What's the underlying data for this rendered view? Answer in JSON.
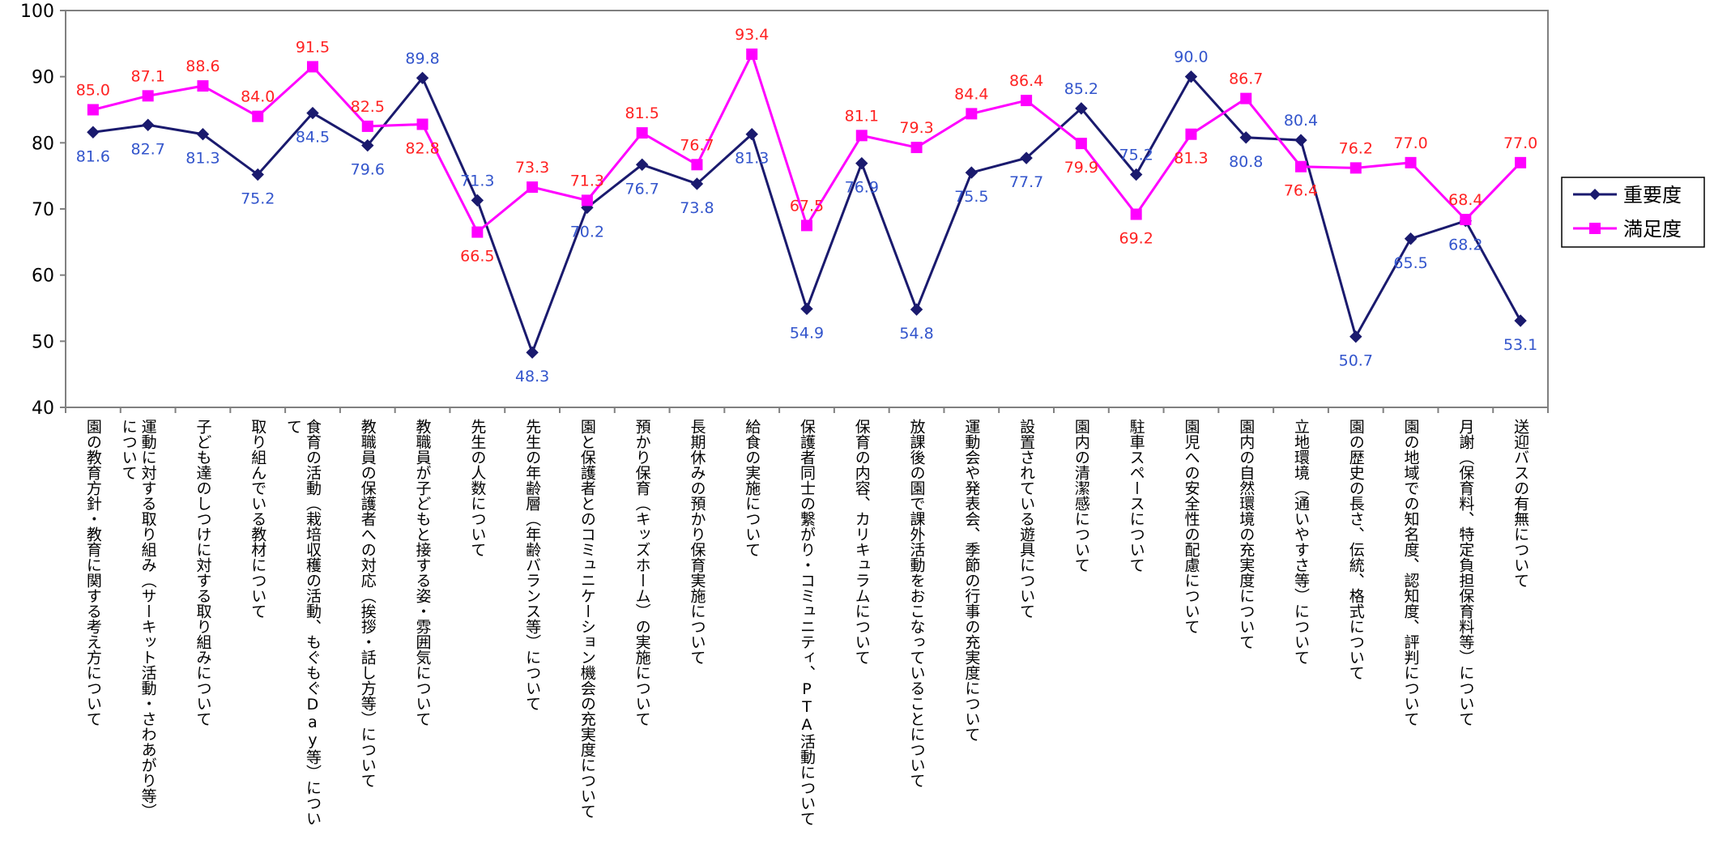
{
  "chart_data": {
    "type": "line",
    "categories": [
      "園の教育方針・教育に関する考え方について",
      "運動に対する取り組み（サーキット活動・さわあがり等）について",
      "子ども達のしつけに対する取り組みについて",
      "取り組んでいる教材について",
      "食育の活動（栽培収穫の活動、もぐもぐDay等）について",
      "教職員の保護者への対応（挨拶・話し方等）について",
      "教職員が子どもと接する姿・雰囲気について",
      "先生の人数について",
      "先生の年齢層（年齢バランス等）について",
      "園と保護者とのコミュニケーション機会の充実度について",
      "預かり保育（キッズホーム）の実施について",
      "長期休みの預かり保育実施について",
      "給食の実施について",
      "保護者同士の繋がり・コミュニティ、PTA活動について",
      "保育の内容、カリキュラムについて",
      "放課後の園で課外活動をおこなっていることについて",
      "運動会や発表会、季節の行事の充実度について",
      "設置されている遊具について",
      "園内の清潔感について",
      "駐車スペースについて",
      "園児への安全性の配慮について",
      "園内の自然環境の充実度について",
      "立地環境（通いやすさ等）について",
      "園の歴史の長さ、伝統、格式について",
      "園の地域での知名度、認知度、評判について",
      "月謝（保育料、特定負担保育料等）について",
      "送迎バスの有無について"
    ],
    "series": [
      {
        "name": "重要度",
        "color": "#1a1a6e",
        "marker": "diamond",
        "values": [
          81.6,
          82.7,
          81.3,
          75.2,
          84.5,
          79.6,
          89.8,
          71.3,
          48.3,
          70.2,
          76.7,
          73.8,
          81.3,
          54.9,
          76.9,
          54.8,
          75.5,
          77.7,
          85.2,
          75.2,
          90.0,
          80.8,
          80.4,
          50.7,
          65.5,
          68.2,
          53.1
        ],
        "labels": [
          "81.6",
          "82.7",
          "81.3",
          "75.2",
          "84.5",
          "79.6",
          "89.8",
          "71.3",
          "48.3",
          "70.2",
          "76.7",
          "73.8",
          "81.3",
          "54.9",
          "76.9",
          "54.8",
          "75.5",
          "77.7",
          "85.2",
          "75.2",
          "90.0",
          "80.8",
          "80.4",
          "50.7",
          "65.5",
          "68.2",
          "53.1"
        ],
        "label_color": "#3355cc"
      },
      {
        "name": "満足度",
        "color": "#ff00ff",
        "marker": "square",
        "values": [
          85.0,
          87.1,
          88.6,
          84.0,
          91.5,
          82.5,
          82.8,
          66.5,
          73.3,
          71.3,
          81.5,
          76.7,
          93.4,
          67.5,
          81.1,
          79.3,
          84.4,
          86.4,
          79.9,
          69.2,
          81.3,
          86.7,
          76.4,
          76.2,
          77.0,
          68.4,
          77.0
        ],
        "labels": [
          "85.0",
          "87.1",
          "88.6",
          "84.0",
          "91.5",
          "82.5",
          "82.8",
          "66.5",
          "73.3",
          "71.3",
          "81.5",
          "76.7",
          "93.4",
          "67.5",
          "81.1",
          "79.3",
          "84.4",
          "86.4",
          "79.9",
          "69.2",
          "81.3",
          "86.7",
          "76.4",
          "76.2",
          "77.0",
          "68.4",
          "77.0"
        ],
        "label_color": "#ff2222"
      }
    ],
    "ylim": [
      40,
      100
    ],
    "yticks": [
      "40",
      "50",
      "60",
      "70",
      "80",
      "90",
      "100"
    ],
    "grid": false,
    "legend_position": "right"
  }
}
